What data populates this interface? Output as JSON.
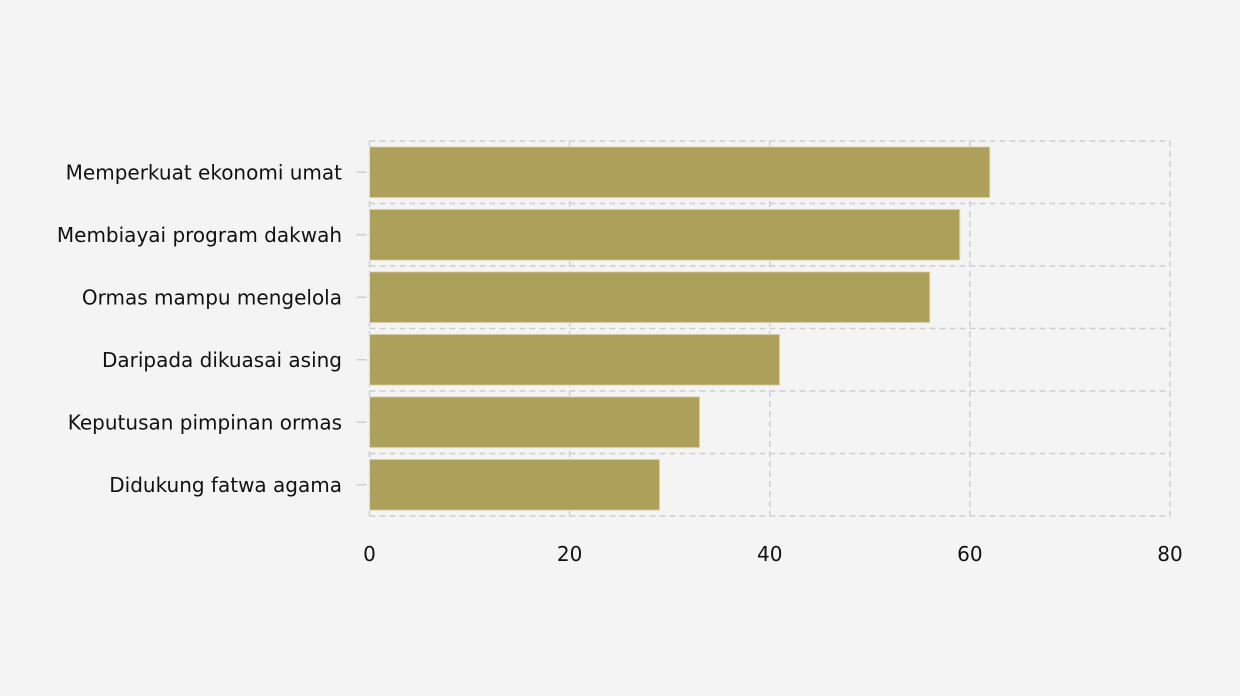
{
  "chart_data": {
    "type": "bar",
    "orientation": "horizontal",
    "categories": [
      "Memperkuat ekonomi umat",
      "Membiayai program dakwah",
      "Ormas mampu mengelola",
      "Daripada dikuasai asing",
      "Keputusan pimpinan ormas",
      "Didukung fatwa agama"
    ],
    "values": [
      62,
      59,
      56,
      41,
      33,
      29
    ],
    "xlim": [
      0,
      80
    ],
    "xticks": [
      "0",
      "20",
      "40",
      "60",
      "80"
    ],
    "grid": true,
    "bar_color": "#ada05a",
    "background": "#f4f4f4"
  }
}
